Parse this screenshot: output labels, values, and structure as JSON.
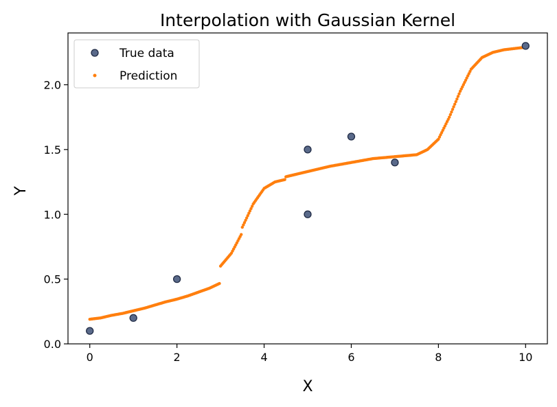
{
  "chart_data": {
    "type": "scatter",
    "title": "Interpolation with Gaussian Kernel",
    "xlabel": "X",
    "ylabel": "Y",
    "xlim": [
      -0.5,
      10.5
    ],
    "ylim": [
      0.0,
      2.4
    ],
    "xticks": [
      0,
      2,
      4,
      6,
      8,
      10
    ],
    "yticks": [
      0.0,
      0.5,
      1.0,
      1.5,
      2.0
    ],
    "xtick_labels": [
      "0",
      "2",
      "4",
      "6",
      "8",
      "10"
    ],
    "ytick_labels": [
      "0.0",
      "0.5",
      "1.0",
      "1.5",
      "2.0"
    ],
    "grid": false,
    "legend": {
      "position": "top-left",
      "entries": [
        "True data",
        "Prediction"
      ]
    },
    "series": [
      {
        "name": "True data",
        "marker": "circle",
        "color": "#1f2a44",
        "points": [
          [
            0,
            0.1
          ],
          [
            1,
            0.2
          ],
          [
            2,
            0.5
          ],
          [
            5,
            1.0
          ],
          [
            5,
            1.5
          ],
          [
            6,
            1.6
          ],
          [
            7,
            1.4
          ],
          [
            10,
            2.3
          ]
        ]
      },
      {
        "name": "Prediction",
        "marker": "dot",
        "color": "#ff7f0e",
        "points": [
          [
            0.0,
            0.19
          ],
          [
            0.25,
            0.2
          ],
          [
            0.5,
            0.22
          ],
          [
            0.75,
            0.235
          ],
          [
            1.0,
            0.255
          ],
          [
            1.25,
            0.275
          ],
          [
            1.5,
            0.3
          ],
          [
            1.75,
            0.325
          ],
          [
            2.0,
            0.345
          ],
          [
            2.25,
            0.37
          ],
          [
            2.5,
            0.4
          ],
          [
            2.75,
            0.43
          ],
          [
            3.0,
            0.47
          ],
          [
            3.0,
            0.6
          ],
          [
            3.25,
            0.7
          ],
          [
            3.5,
            0.86
          ],
          [
            3.5,
            0.9
          ],
          [
            3.75,
            1.08
          ],
          [
            4.0,
            1.2
          ],
          [
            4.25,
            1.25
          ],
          [
            4.5,
            1.27
          ],
          [
            4.5,
            1.29
          ],
          [
            4.75,
            1.31
          ],
          [
            5.0,
            1.33
          ],
          [
            5.5,
            1.37
          ],
          [
            6.0,
            1.4
          ],
          [
            6.5,
            1.43
          ],
          [
            7.0,
            1.445
          ],
          [
            7.5,
            1.46
          ],
          [
            7.75,
            1.5
          ],
          [
            8.0,
            1.58
          ],
          [
            8.25,
            1.75
          ],
          [
            8.5,
            1.95
          ],
          [
            8.75,
            2.12
          ],
          [
            9.0,
            2.21
          ],
          [
            9.25,
            2.25
          ],
          [
            9.5,
            2.27
          ],
          [
            9.75,
            2.28
          ],
          [
            10.0,
            2.29
          ]
        ]
      }
    ]
  }
}
